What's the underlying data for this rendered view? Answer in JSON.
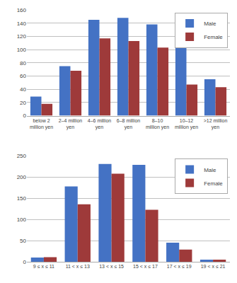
{
  "chart_data": [
    {
      "type": "bar",
      "categories": [
        "below 2\nmillion yen",
        "2–4 million\nyen",
        "4–6 million\nyen",
        "6–8 million\nyen",
        "8–10\nmillion yen",
        "10–12\nmillion yen",
        ">12 million\nyen"
      ],
      "series": [
        {
          "name": "Male",
          "color": "#4472C4",
          "values": [
            29,
            75,
            145,
            148,
            138,
            107,
            55
          ]
        },
        {
          "name": "Female",
          "color": "#9E3A3A",
          "values": [
            18,
            68,
            117,
            113,
            103,
            47,
            43
          ]
        }
      ],
      "ylim": [
        0,
        160
      ],
      "yticks": [
        0,
        20,
        40,
        60,
        80,
        100,
        120,
        140,
        160
      ],
      "grid": true,
      "legend": "upper right"
    },
    {
      "type": "bar",
      "categories": [
        "9 ≤ x ≤ 11",
        "11 < x ≤ 13",
        "13 < x ≤ 15",
        "15 < x ≤ 17",
        "17 < x ≤ 19",
        "19 < x ≤ 21"
      ],
      "series": [
        {
          "name": "Male",
          "color": "#4472C4",
          "values": [
            10,
            178,
            231,
            229,
            45,
            5
          ]
        },
        {
          "name": "Female",
          "color": "#9E3A3A",
          "values": [
            11,
            136,
            208,
            123,
            29,
            5
          ]
        }
      ],
      "ylim": [
        0,
        250
      ],
      "yticks": [
        0,
        50,
        100,
        150,
        200,
        250
      ],
      "grid": true,
      "legend": "upper right"
    }
  ]
}
